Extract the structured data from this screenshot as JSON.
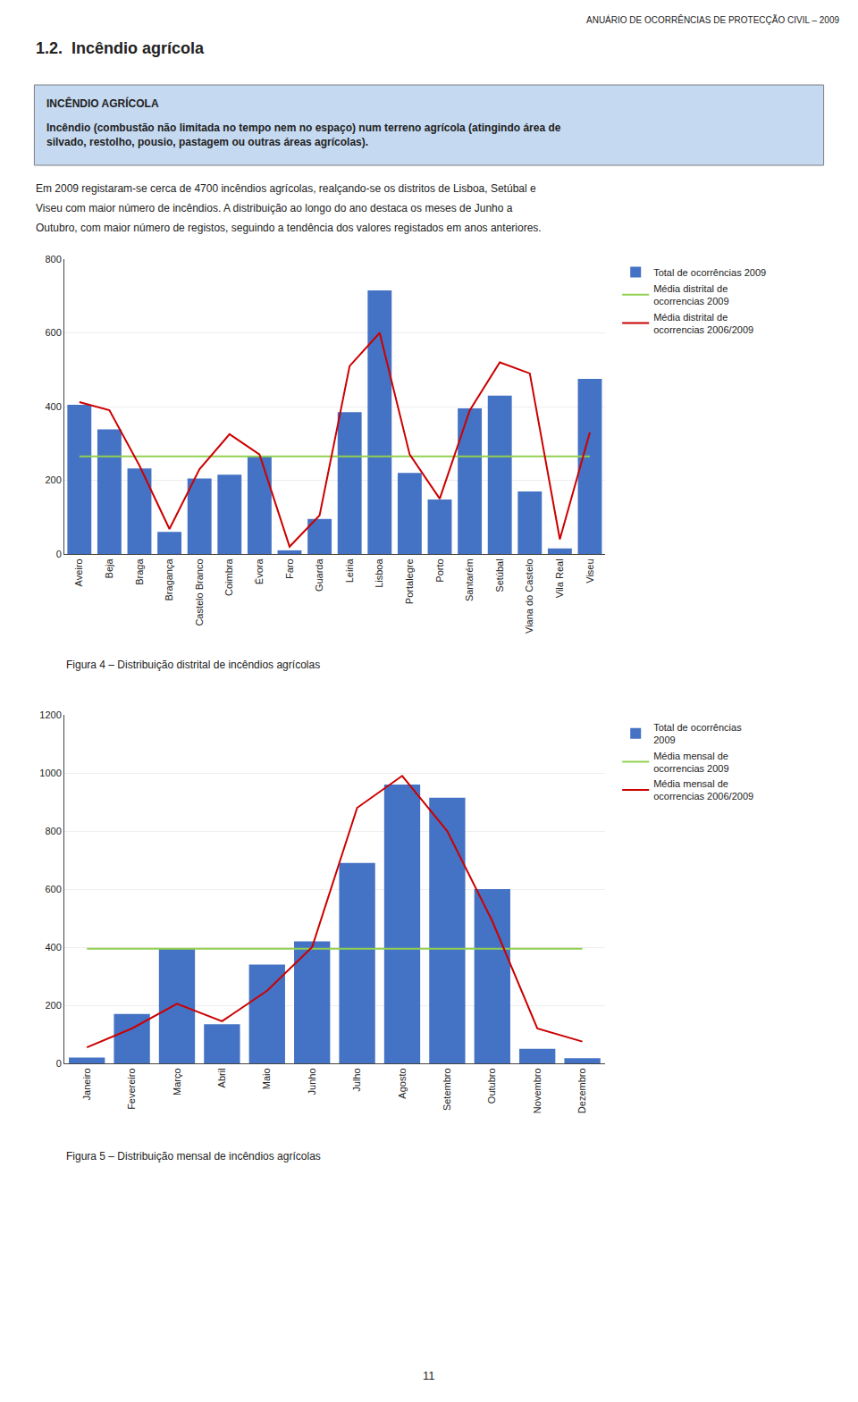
{
  "title": "1.2.  Incêndio agrícola",
  "annotations": [
    "ANUÁRIO DE OCORRÊNCIAS DE PROTECÇÃO CIVIL – 2009",
    "INCÊNDIO AGRÍCOLA",
    "Incêndio (combustão não limitada no tempo nem no espaço) num terreno agrícola (atingindo área de\nsilvado, restolho, pousio, pastagem ou outras áreas agrícolas).",
    "Em 2009 registaram-se cerca de 4700 incêndios agrícolas, realçando-se os distritos de Lisboa, Setúbal e",
    "Viseu com maior número de incêndios. A distribuição ao longo do ano destaca os meses de Junho a",
    "Outubro, com maior número de registos, seguindo a tendência dos valores registados em anos anteriores.",
    "11"
  ],
  "chart_data": [
    {
      "type": "bar",
      "title": "Figura 4 – Distribuição distrital de incêndios agrícolas",
      "categories": [
        "Aveiro",
        "Beja",
        "Braga",
        "Bragança",
        "Castelo Branco",
        "Coimbra",
        "Évora",
        "Faro",
        "Guarda",
        "Leiria",
        "Lisboa",
        "Portalegre",
        "Porto",
        "Santarém",
        "Setúbal",
        "Viana do Castelo",
        "Vila Real",
        "Viseu"
      ],
      "series": [
        {
          "name": "Total de ocorrências 2009",
          "type": "bar",
          "color": "#4472C4",
          "values": [
            405,
            338,
            232,
            60,
            205,
            215,
            265,
            10,
            95,
            385,
            715,
            220,
            148,
            395,
            430,
            170,
            15,
            475
          ]
        },
        {
          "name": "Média distrital de\nocorrencias 2009",
          "type": "line",
          "color": "#92D050",
          "values": [
            265,
            265,
            265,
            265,
            265,
            265,
            265,
            265,
            265,
            265,
            265,
            265,
            265,
            265,
            265,
            265,
            265,
            265
          ]
        },
        {
          "name": "Média distrital de\nocorrencias 2006/2009",
          "type": "line",
          "color": "#CC0000",
          "values": [
            412,
            390,
            240,
            68,
            230,
            325,
            270,
            20,
            105,
            510,
            600,
            270,
            150,
            390,
            520,
            490,
            40,
            330
          ]
        }
      ],
      "ylim": [
        0,
        800
      ],
      "yticks": [
        0,
        200,
        400,
        600,
        800
      ],
      "grid": true,
      "legend": "right"
    },
    {
      "type": "bar",
      "title": "Figura 5 – Distribuição mensal de incêndios agrícolas",
      "categories": [
        "Janeiro",
        "Fevereiro",
        "Março",
        "Abril",
        "Maio",
        "Junho",
        "Julho",
        "Agosto",
        "Setembro",
        "Outubro",
        "Novembro",
        "Dezembro"
      ],
      "series": [
        {
          "name": "Total de ocorrências\n2009",
          "type": "bar",
          "color": "#4472C4",
          "values": [
            20,
            170,
            395,
            135,
            340,
            420,
            690,
            960,
            915,
            600,
            50,
            18
          ]
        },
        {
          "name": "Média mensal de\nocorrencias 2009",
          "type": "line",
          "color": "#92D050",
          "values": [
            395,
            395,
            395,
            395,
            395,
            395,
            395,
            395,
            395,
            395,
            395,
            395
          ]
        },
        {
          "name": "Média mensal de\nocorrencias 2006/2009",
          "type": "line",
          "color": "#CC0000",
          "values": [
            55,
            120,
            205,
            145,
            250,
            400,
            880,
            990,
            800,
            490,
            120,
            75
          ]
        }
      ],
      "ylim": [
        0,
        1200
      ],
      "yticks": [
        0,
        200,
        400,
        600,
        800,
        1000,
        1200
      ],
      "grid": true,
      "legend": "right"
    }
  ]
}
